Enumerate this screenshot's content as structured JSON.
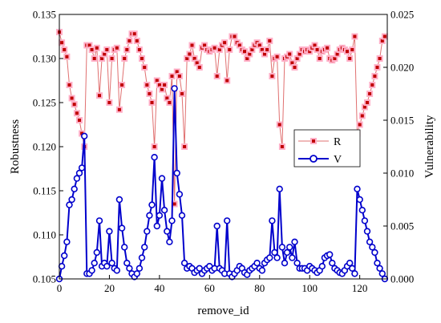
{
  "chart_data": {
    "type": "line",
    "title": "",
    "xlabel": "remove_id",
    "ylabel": "Robustness",
    "y2label": "Vulnerability",
    "xlim": [
      0,
      131
    ],
    "ylim": [
      0.105,
      0.135
    ],
    "y2lim": [
      0.0,
      0.025
    ],
    "x_ticks": [
      0,
      20,
      40,
      60,
      80,
      100,
      120
    ],
    "y_ticks": [
      0.105,
      0.11,
      0.115,
      0.12,
      0.125,
      0.13,
      0.135
    ],
    "y2_ticks": [
      0.0,
      0.005,
      0.01,
      0.015,
      0.02,
      0.025
    ],
    "x_tick_labels": [
      "0",
      "20",
      "40",
      "60",
      "80",
      "100",
      "120"
    ],
    "y_tick_labels": [
      "0.105",
      "0.110",
      "0.115",
      "0.120",
      "0.125",
      "0.130",
      "0.135"
    ],
    "y2_tick_labels": [
      "0.000",
      "0.005",
      "0.010",
      "0.015",
      "0.020",
      "0.025"
    ],
    "legend_position": "center-right",
    "grid": false,
    "series": [
      {
        "name": "R",
        "axis": "left",
        "color": "#c00000",
        "line_color": "#e07070",
        "marker": "square",
        "x": [
          0,
          1,
          2,
          3,
          4,
          5,
          6,
          7,
          8,
          9,
          10,
          11,
          12,
          13,
          14,
          15,
          16,
          17,
          18,
          19,
          20,
          21,
          22,
          23,
          24,
          25,
          26,
          27,
          28,
          29,
          30,
          31,
          32,
          33,
          34,
          35,
          36,
          37,
          38,
          39,
          40,
          41,
          42,
          43,
          44,
          45,
          46,
          47,
          48,
          49,
          50,
          51,
          52,
          53,
          54,
          55,
          56,
          57,
          58,
          59,
          60,
          61,
          62,
          63,
          64,
          65,
          66,
          67,
          68,
          69,
          70,
          71,
          72,
          73,
          74,
          75,
          76,
          77,
          78,
          79,
          80,
          81,
          82,
          83,
          84,
          85,
          86,
          87,
          88,
          89,
          90,
          91,
          92,
          93,
          94,
          95,
          96,
          97,
          98,
          99,
          100,
          101,
          102,
          103,
          104,
          105,
          106,
          107,
          108,
          109,
          110,
          111,
          112,
          113,
          114,
          115,
          116,
          117,
          118,
          119,
          120,
          121,
          122,
          123,
          124,
          125,
          126,
          127,
          128,
          129,
          130
        ],
        "values": [
          0.133,
          0.1318,
          0.131,
          0.1302,
          0.127,
          0.1255,
          0.1248,
          0.1238,
          0.123,
          0.1215,
          0.12,
          0.1315,
          0.1315,
          0.131,
          0.13,
          0.1312,
          0.1258,
          0.13,
          0.1305,
          0.131,
          0.125,
          0.13,
          0.131,
          0.1312,
          0.1242,
          0.127,
          0.13,
          0.131,
          0.132,
          0.1328,
          0.1328,
          0.132,
          0.131,
          0.13,
          0.129,
          0.127,
          0.126,
          0.125,
          0.12,
          0.1275,
          0.127,
          0.1265,
          0.127,
          0.1255,
          0.125,
          0.128,
          0.1135,
          0.1285,
          0.128,
          0.126,
          0.12,
          0.13,
          0.1305,
          0.1315,
          0.13,
          0.1295,
          0.129,
          0.1312,
          0.1315,
          0.131,
          0.1308,
          0.131,
          0.1312,
          0.128,
          0.131,
          0.1315,
          0.1318,
          0.1275,
          0.131,
          0.1325,
          0.1325,
          0.1318,
          0.1315,
          0.131,
          0.1308,
          0.13,
          0.1305,
          0.131,
          0.1315,
          0.1318,
          0.1315,
          0.131,
          0.1305,
          0.131,
          0.132,
          0.128,
          0.13,
          0.1302,
          0.1225,
          0.12,
          0.13,
          0.1302,
          0.1305,
          0.1295,
          0.129,
          0.13,
          0.1305,
          0.131,
          0.1308,
          0.131,
          0.1308,
          0.1312,
          0.1315,
          0.131,
          0.13,
          0.1308,
          0.131,
          0.1312,
          0.13,
          0.1298,
          0.13,
          0.1305,
          0.131,
          0.1312,
          0.131,
          0.1308,
          0.13,
          0.131,
          0.1325,
          0.1215,
          0.1225,
          0.1235,
          0.1245,
          0.125,
          0.126,
          0.127,
          0.128,
          0.129,
          0.13,
          0.132,
          0.1325
        ]
      },
      {
        "name": "V",
        "axis": "right",
        "color": "#0000cc",
        "line_color": "#0000cc",
        "marker": "circle",
        "x": [
          0,
          1,
          2,
          3,
          4,
          5,
          6,
          7,
          8,
          9,
          10,
          11,
          12,
          13,
          14,
          15,
          16,
          17,
          18,
          19,
          20,
          21,
          22,
          23,
          24,
          25,
          26,
          27,
          28,
          29,
          30,
          31,
          32,
          33,
          34,
          35,
          36,
          37,
          38,
          39,
          40,
          41,
          42,
          43,
          44,
          45,
          46,
          47,
          48,
          49,
          50,
          51,
          52,
          53,
          54,
          55,
          56,
          57,
          58,
          59,
          60,
          61,
          62,
          63,
          64,
          65,
          66,
          67,
          68,
          69,
          70,
          71,
          72,
          73,
          74,
          75,
          76,
          77,
          78,
          79,
          80,
          81,
          82,
          83,
          84,
          85,
          86,
          87,
          88,
          89,
          90,
          91,
          92,
          93,
          94,
          95,
          96,
          97,
          98,
          99,
          100,
          101,
          102,
          103,
          104,
          105,
          106,
          107,
          108,
          109,
          110,
          111,
          112,
          113,
          114,
          115,
          116,
          117,
          118,
          119,
          120,
          121,
          122,
          123,
          124,
          125,
          126,
          127,
          128,
          129,
          130
        ],
        "values": [
          0.0,
          0.0012,
          0.0022,
          0.0035,
          0.007,
          0.0075,
          0.0085,
          0.0095,
          0.01,
          0.0105,
          0.0135,
          0.0005,
          0.0005,
          0.0008,
          0.0015,
          0.0025,
          0.0055,
          0.0012,
          0.0015,
          0.0012,
          0.0045,
          0.0015,
          0.001,
          0.0008,
          0.0075,
          0.0048,
          0.003,
          0.0015,
          0.001,
          0.0005,
          0.0002,
          0.0005,
          0.001,
          0.002,
          0.003,
          0.0045,
          0.006,
          0.007,
          0.0115,
          0.005,
          0.006,
          0.0095,
          0.0065,
          0.0045,
          0.0035,
          0.0055,
          0.018,
          0.01,
          0.008,
          0.006,
          0.0015,
          0.001,
          0.0012,
          0.001,
          0.0006,
          0.0008,
          0.001,
          0.0005,
          0.0008,
          0.001,
          0.0012,
          0.0008,
          0.001,
          0.005,
          0.001,
          0.0008,
          0.0005,
          0.0055,
          0.0005,
          0.0002,
          0.0005,
          0.0008,
          0.0012,
          0.001,
          0.0006,
          0.0004,
          0.0008,
          0.001,
          0.0012,
          0.0015,
          0.001,
          0.0008,
          0.0015,
          0.0018,
          0.002,
          0.0055,
          0.0025,
          0.002,
          0.0085,
          0.003,
          0.0015,
          0.0025,
          0.003,
          0.002,
          0.0035,
          0.0015,
          0.001,
          0.001,
          0.001,
          0.0008,
          0.0012,
          0.001,
          0.0008,
          0.0006,
          0.0008,
          0.0012,
          0.002,
          0.0022,
          0.0023,
          0.0015,
          0.001,
          0.0008,
          0.0006,
          0.0005,
          0.0008,
          0.0012,
          0.0015,
          0.001,
          0.0005,
          0.0085,
          0.0075,
          0.0065,
          0.0055,
          0.0045,
          0.0035,
          0.003,
          0.0025,
          0.0015,
          0.001,
          0.0005,
          0.0
        ]
      }
    ]
  }
}
